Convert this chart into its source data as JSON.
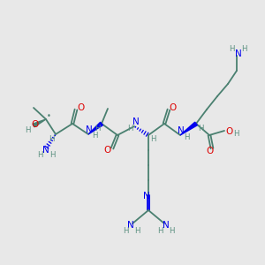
{
  "bg_color": "#e8e8e8",
  "C": "#4a8070",
  "N": "#0000ee",
  "O": "#dd0000",
  "H": "#5a9080",
  "bond": "#4a8070",
  "fig_w": 3.0,
  "fig_h": 3.0,
  "dpi": 100
}
